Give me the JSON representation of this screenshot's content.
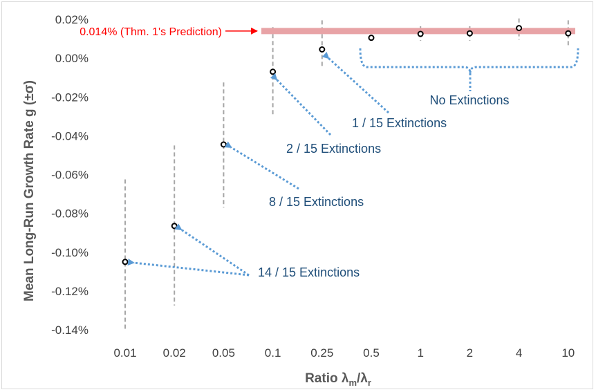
{
  "chart_data": {
    "type": "scatter",
    "xlabel_main": "Ratio λ",
    "xlabel_sub1": "m",
    "xlabel_sep": "/λ",
    "xlabel_sub2": "r",
    "ylabel": "Mean Long-Run Growth Rate g (±σ)",
    "categories": [
      "0.01",
      "0.02",
      "0.05",
      "0.1",
      "0.25",
      "0.5",
      "1",
      "2",
      "4",
      "10"
    ],
    "ylim": [
      -0.14,
      0.02
    ],
    "y_ticks": [
      "0.02%",
      "0.00%",
      "-0.02%",
      "-0.04%",
      "-0.06%",
      "-0.08%",
      "-0.10%",
      "-0.12%",
      "-0.14%"
    ],
    "y_tick_values": [
      0.02,
      0.0,
      -0.02,
      -0.04,
      -0.06,
      -0.08,
      -0.1,
      -0.12,
      -0.14
    ],
    "grid": "none",
    "series": [
      {
        "means": [
          -0.105,
          -0.0865,
          -0.0445,
          -0.007,
          0.0045,
          0.0105,
          0.0125,
          0.0128,
          0.0155,
          0.0128
        ],
        "sigma_low": [
          -0.14,
          -0.1275,
          -0.077,
          -0.029,
          -0.004,
          0.0105,
          0.009,
          0.009,
          0.0095,
          0.0065
        ],
        "sigma_high": [
          -0.0625,
          -0.045,
          -0.0125,
          0.016,
          0.0195,
          0.0105,
          0.0165,
          0.0165,
          0.0205,
          0.0195
        ]
      }
    ],
    "prediction": {
      "value": 0.014,
      "label": "0.014% (Thm. 1's Prediction)",
      "color": "#e8a3a6"
    },
    "annotations": [
      {
        "id": "no-ext",
        "text": "No Extinctions"
      },
      {
        "id": "one-ext",
        "text": "1 / 15 Extinctions"
      },
      {
        "id": "two-ext",
        "text": "2 / 15 Extinctions"
      },
      {
        "id": "eight-ext",
        "text": "8 / 15 Extinctions"
      },
      {
        "id": "fourteen-ext",
        "text": "14 / 15 Extinctions"
      }
    ],
    "colors": {
      "arrow": "#5b9bd5",
      "error_bar": "#a6a6a6",
      "marker": "#000000",
      "annotation_text": "#1f4e79",
      "prediction_text": "#ff0000"
    }
  }
}
